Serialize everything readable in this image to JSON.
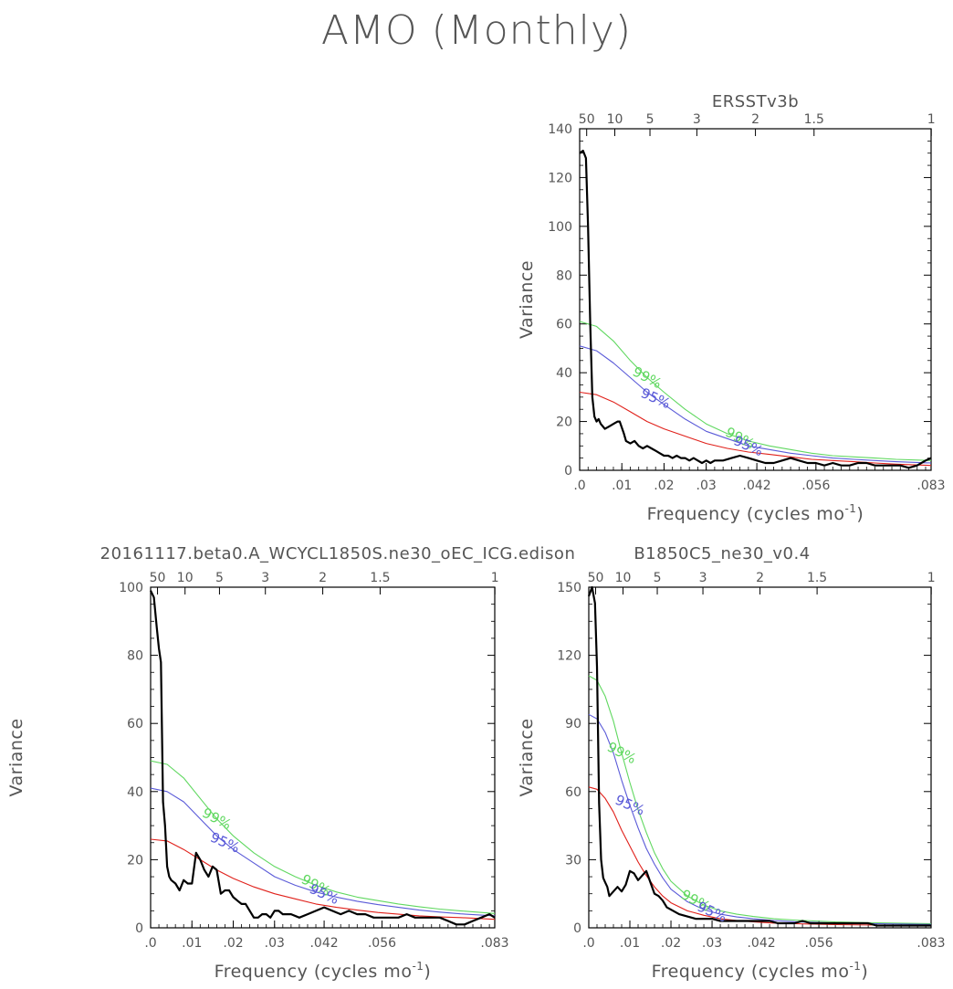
{
  "page": {
    "title": "AMO (Monthly)"
  },
  "colors": {
    "spectrum": "#000000",
    "red_noise": "#e0201a",
    "ci95": "#5a5ad8",
    "ci99": "#60d860",
    "axis": "#000000"
  },
  "chart_data": [
    {
      "type": "line",
      "title": "ERSSTv3b",
      "xlabel": "Frequency (cycles mo",
      "xlabel_sup": "-1",
      "xlabel_close": ")",
      "ylabel": "Variance",
      "xlim": [
        0,
        0.0833
      ],
      "ylim": [
        0,
        140
      ],
      "yticks": [
        0,
        20,
        40,
        60,
        80,
        100,
        120,
        140
      ],
      "xticks": [
        ".0",
        ".01",
        ".02",
        ".03",
        ".042",
        ".056",
        ".083"
      ],
      "period_ticks": [
        "50",
        "10",
        "5",
        "3",
        "2",
        "1.5",
        "1"
      ],
      "sig_labels": [
        "99%",
        "95%"
      ],
      "series": [
        {
          "role": "spectrum",
          "x": [
            0.0,
            0.0008,
            0.0015,
            0.002,
            0.0025,
            0.003,
            0.0035,
            0.004,
            0.0045,
            0.005,
            0.006,
            0.007,
            0.008,
            0.009,
            0.0095,
            0.0105,
            0.011,
            0.012,
            0.013,
            0.014,
            0.015,
            0.016,
            0.017,
            0.018,
            0.019,
            0.02,
            0.021,
            0.022,
            0.023,
            0.024,
            0.025,
            0.026,
            0.027,
            0.028,
            0.029,
            0.03,
            0.031,
            0.032,
            0.034,
            0.036,
            0.038,
            0.04,
            0.042,
            0.044,
            0.046,
            0.048,
            0.05,
            0.052,
            0.054,
            0.056,
            0.058,
            0.06,
            0.062,
            0.064,
            0.066,
            0.068,
            0.07,
            0.072,
            0.074,
            0.076,
            0.078,
            0.08,
            0.082,
            0.0833
          ],
          "y": [
            130,
            131,
            128,
            100,
            60,
            30,
            22,
            20,
            21,
            19,
            17,
            18,
            19,
            20,
            20,
            15,
            12,
            11,
            12,
            10,
            9,
            10,
            9,
            8,
            7,
            6,
            6,
            5,
            6,
            5,
            5,
            4,
            5,
            4,
            3,
            4,
            3,
            4,
            4,
            5,
            6,
            5,
            4,
            3,
            3,
            4,
            5,
            4,
            3,
            3,
            2,
            3,
            2,
            2,
            3,
            3,
            2,
            2,
            2,
            2,
            1,
            2,
            4,
            5
          ]
        },
        {
          "role": "red_noise",
          "x": [
            0.0,
            0.004,
            0.008,
            0.012,
            0.016,
            0.02,
            0.025,
            0.03,
            0.035,
            0.04,
            0.045,
            0.05,
            0.055,
            0.06,
            0.065,
            0.07,
            0.075,
            0.0833
          ],
          "y": [
            32,
            31,
            28,
            24,
            20,
            17,
            14,
            11,
            9,
            7.5,
            6.5,
            5.5,
            4.5,
            4,
            3.5,
            3,
            2.5,
            2
          ]
        },
        {
          "role": "ci95",
          "x": [
            0.0,
            0.004,
            0.008,
            0.012,
            0.016,
            0.02,
            0.025,
            0.03,
            0.035,
            0.04,
            0.045,
            0.05,
            0.055,
            0.06,
            0.065,
            0.07,
            0.075,
            0.0833
          ],
          "y": [
            51,
            49,
            44,
            38,
            32,
            27,
            21,
            16,
            13,
            10,
            8.5,
            7,
            6,
            5,
            4.5,
            4,
            3.5,
            3
          ]
        },
        {
          "role": "ci99",
          "x": [
            0.0,
            0.004,
            0.008,
            0.012,
            0.016,
            0.02,
            0.025,
            0.03,
            0.035,
            0.04,
            0.045,
            0.05,
            0.055,
            0.06,
            0.065,
            0.07,
            0.075,
            0.0833
          ],
          "y": [
            61,
            59,
            53,
            45,
            38,
            32,
            25,
            19,
            15,
            12,
            10,
            8.5,
            7,
            6,
            5.5,
            5,
            4.5,
            4
          ]
        }
      ]
    },
    {
      "type": "line",
      "title": "20161117.beta0.A_WCYCL1850S.ne30_oEC_ICG.edison",
      "xlabel": "Frequency (cycles mo",
      "xlabel_sup": "-1",
      "xlabel_close": ")",
      "ylabel": "Variance",
      "xlim": [
        0,
        0.0833
      ],
      "ylim": [
        0,
        100
      ],
      "yticks": [
        0,
        20,
        40,
        60,
        80,
        100
      ],
      "xticks": [
        ".0",
        ".01",
        ".02",
        ".03",
        ".042",
        ".056",
        ".083"
      ],
      "period_ticks": [
        "50",
        "10",
        "5",
        "3",
        "2",
        "1.5",
        "1"
      ],
      "sig_labels": [
        "99%",
        "95%"
      ],
      "series": [
        {
          "role": "spectrum",
          "x": [
            0.0,
            0.0008,
            0.0015,
            0.002,
            0.0025,
            0.003,
            0.0035,
            0.004,
            0.0045,
            0.005,
            0.006,
            0.007,
            0.008,
            0.009,
            0.01,
            0.011,
            0.012,
            0.013,
            0.014,
            0.015,
            0.016,
            0.017,
            0.018,
            0.019,
            0.02,
            0.021,
            0.022,
            0.023,
            0.024,
            0.025,
            0.026,
            0.027,
            0.028,
            0.029,
            0.03,
            0.031,
            0.032,
            0.034,
            0.036,
            0.038,
            0.04,
            0.042,
            0.044,
            0.046,
            0.048,
            0.05,
            0.052,
            0.054,
            0.056,
            0.058,
            0.06,
            0.062,
            0.064,
            0.066,
            0.068,
            0.07,
            0.072,
            0.074,
            0.076,
            0.078,
            0.08,
            0.082,
            0.0833
          ],
          "y": [
            99,
            97,
            88,
            82,
            78,
            37,
            30,
            18,
            15,
            14,
            13,
            11,
            14,
            13,
            13,
            22,
            20,
            17,
            15,
            18,
            17,
            10,
            11,
            11,
            9,
            8,
            7,
            7,
            5,
            3,
            3,
            4,
            4,
            3,
            5,
            5,
            4,
            4,
            3,
            4,
            5,
            6,
            5,
            4,
            5,
            4,
            4,
            3,
            3,
            3,
            3,
            4,
            3,
            3,
            3,
            3,
            2,
            1,
            1,
            2,
            3,
            4,
            3
          ]
        },
        {
          "role": "red_noise",
          "x": [
            0.0,
            0.004,
            0.008,
            0.012,
            0.016,
            0.02,
            0.025,
            0.03,
            0.035,
            0.04,
            0.045,
            0.05,
            0.055,
            0.06,
            0.065,
            0.07,
            0.075,
            0.0833
          ],
          "y": [
            26,
            25.5,
            23,
            20,
            17,
            14.5,
            12,
            10,
            8.5,
            7,
            6,
            5.2,
            4.5,
            4,
            3.5,
            3.2,
            3,
            2.5
          ]
        },
        {
          "role": "ci95",
          "x": [
            0.0,
            0.004,
            0.008,
            0.012,
            0.016,
            0.02,
            0.025,
            0.03,
            0.035,
            0.04,
            0.045,
            0.05,
            0.055,
            0.06,
            0.065,
            0.07,
            0.075,
            0.0833
          ],
          "y": [
            41,
            40,
            37,
            32,
            27,
            23,
            19,
            15,
            12.5,
            10.5,
            9,
            7.8,
            6.8,
            6,
            5.2,
            4.6,
            4.1,
            3.5
          ]
        },
        {
          "role": "ci99",
          "x": [
            0.0,
            0.004,
            0.008,
            0.012,
            0.016,
            0.02,
            0.025,
            0.03,
            0.035,
            0.04,
            0.045,
            0.05,
            0.055,
            0.06,
            0.065,
            0.07,
            0.075,
            0.0833
          ],
          "y": [
            49,
            48,
            44,
            38,
            32,
            27,
            22,
            18,
            15,
            12.5,
            10.5,
            9,
            8,
            7,
            6.2,
            5.5,
            5,
            4.2
          ]
        }
      ]
    },
    {
      "type": "line",
      "title": "B1850C5_ne30_v0.4",
      "xlabel": "Frequency (cycles mo",
      "xlabel_sup": "-1",
      "xlabel_close": ")",
      "ylabel": "Variance",
      "xlim": [
        0,
        0.0833
      ],
      "ylim": [
        0,
        150
      ],
      "yticks": [
        0,
        30,
        60,
        90,
        120,
        150
      ],
      "xticks": [
        ".0",
        ".01",
        ".02",
        ".03",
        ".042",
        ".056",
        ".083"
      ],
      "period_ticks": [
        "50",
        "10",
        "5",
        "3",
        "2",
        "1.5",
        "1"
      ],
      "sig_labels": [
        "99%",
        "95%"
      ],
      "series": [
        {
          "role": "spectrum",
          "x": [
            0.0,
            0.0008,
            0.0015,
            0.002,
            0.0025,
            0.003,
            0.0035,
            0.004,
            0.0045,
            0.005,
            0.006,
            0.007,
            0.008,
            0.009,
            0.01,
            0.011,
            0.012,
            0.013,
            0.014,
            0.015,
            0.016,
            0.017,
            0.018,
            0.019,
            0.02,
            0.021,
            0.022,
            0.024,
            0.026,
            0.028,
            0.03,
            0.032,
            0.034,
            0.036,
            0.038,
            0.04,
            0.042,
            0.044,
            0.046,
            0.048,
            0.05,
            0.052,
            0.054,
            0.056,
            0.058,
            0.06,
            0.062,
            0.064,
            0.066,
            0.068,
            0.07,
            0.072,
            0.074,
            0.076,
            0.078,
            0.08,
            0.082,
            0.0833
          ],
          "y": [
            146,
            150,
            143,
            115,
            55,
            30,
            22,
            20,
            18,
            14,
            16,
            18,
            16,
            19,
            25,
            24,
            21,
            23,
            25,
            20,
            15,
            14,
            12,
            9,
            8,
            7,
            6,
            5,
            4,
            4,
            4,
            3,
            3,
            3,
            3,
            3,
            3,
            3,
            2,
            2,
            2,
            3,
            2,
            2,
            2,
            2,
            2,
            2,
            2,
            2,
            1,
            1,
            1,
            1,
            1,
            1,
            1,
            1
          ]
        },
        {
          "role": "red_noise",
          "x": [
            0.0,
            0.002,
            0.004,
            0.006,
            0.008,
            0.01,
            0.012,
            0.014,
            0.016,
            0.018,
            0.02,
            0.024,
            0.028,
            0.032,
            0.036,
            0.04,
            0.045,
            0.05,
            0.055,
            0.06,
            0.07,
            0.0833
          ],
          "y": [
            62,
            61,
            57,
            51,
            43,
            36,
            29,
            23,
            18,
            14,
            11,
            7.5,
            5.5,
            4,
            3.2,
            2.6,
            2.1,
            1.8,
            1.6,
            1.4,
            1.2,
            1
          ]
        },
        {
          "role": "ci95",
          "x": [
            0.0,
            0.002,
            0.004,
            0.006,
            0.008,
            0.01,
            0.012,
            0.014,
            0.016,
            0.018,
            0.02,
            0.024,
            0.028,
            0.032,
            0.036,
            0.04,
            0.045,
            0.05,
            0.055,
            0.06,
            0.07,
            0.0833
          ],
          "y": [
            94,
            92,
            86,
            77,
            65,
            54,
            44,
            35,
            28,
            22,
            17,
            11.5,
            8,
            6,
            4.8,
            4,
            3.2,
            2.7,
            2.4,
            2.1,
            1.8,
            1.5
          ]
        },
        {
          "role": "ci99",
          "x": [
            0.0,
            0.002,
            0.004,
            0.006,
            0.008,
            0.01,
            0.012,
            0.014,
            0.016,
            0.018,
            0.02,
            0.024,
            0.028,
            0.032,
            0.036,
            0.04,
            0.045,
            0.05,
            0.055,
            0.06,
            0.07,
            0.0833
          ],
          "y": [
            111,
            109,
            102,
            91,
            77,
            64,
            52,
            42,
            33,
            26,
            20.5,
            14,
            10,
            7.5,
            6,
            5,
            4,
            3.4,
            3,
            2.6,
            2.2,
            1.8
          ]
        }
      ]
    }
  ]
}
